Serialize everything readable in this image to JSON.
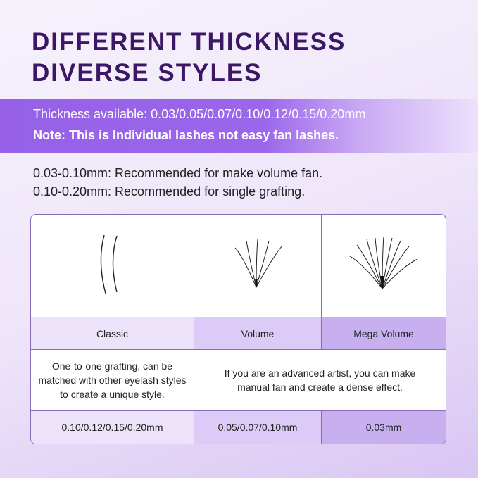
{
  "title": {
    "line1": "DIFFERENT THICKNESS",
    "line2": "DIVERSE STYLES"
  },
  "banner": {
    "thickness": "Thickness available: 0.03/0.05/0.07/0.10/0.12/0.15/0.20mm",
    "note": "Note: This is Individual lashes not easy fan lashes."
  },
  "recommendations": [
    "0.03-0.10mm: Recommended for make volume fan.",
    "0.10-0.20mm: Recommended for single grafting."
  ],
  "table": {
    "styles": [
      "Classic",
      "Volume",
      "Mega Volume"
    ],
    "descriptions": {
      "classic": "One-to-one grafting, can be matched with other eyelash styles to create a unique style.",
      "volume_mega": "If you are an advanced artist, you can make manual fan and create a dense effect."
    },
    "sizes": [
      "0.10/0.12/0.15/0.20mm",
      "0.05/0.07/0.10mm",
      "0.03mm"
    ],
    "images": [
      "classic-lash-icon",
      "volume-fan-icon",
      "mega-volume-fan-icon"
    ]
  },
  "colors": {
    "title": "#3b1766",
    "banner": "#9661e8",
    "accent_light": "#ece3fa",
    "accent_mid": "#dccbf6",
    "accent_dark": "#c8b0f0"
  }
}
